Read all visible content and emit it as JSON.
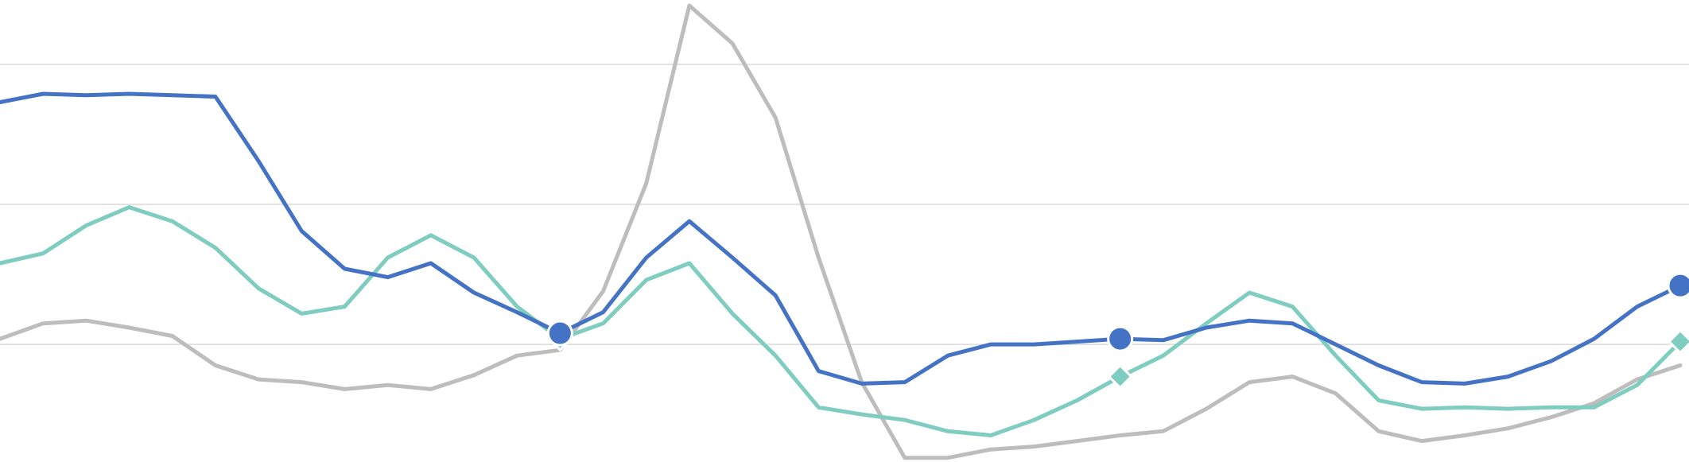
{
  "chart_data": {
    "type": "line",
    "categories": [
      null,
      null,
      null,
      null,
      null,
      null,
      null,
      null,
      null,
      null,
      null,
      null,
      null,
      null,
      null,
      null,
      null,
      null,
      null,
      null,
      null,
      null,
      null,
      null,
      null,
      null,
      null,
      null,
      null,
      null,
      null,
      null,
      null,
      null,
      null,
      null,
      null,
      null,
      null,
      null
    ],
    "ylim": [
      1.6,
      34.6
    ],
    "yticks": [
      10,
      20,
      30
    ],
    "grid": true,
    "series": [
      {
        "color": "#bdbdbd",
        "values": [
          10.4,
          11.5,
          11.7,
          11.2,
          10.6,
          8.5,
          7.5,
          7.3,
          6.8,
          7.1,
          6.8,
          7.8,
          9.2,
          9.6,
          13.8,
          21.5,
          34.2,
          31.5,
          26.2,
          16.2,
          7.3,
          1.9,
          1.9,
          2.5,
          2.7,
          3.1,
          3.5,
          3.8,
          5.4,
          7.3,
          7.7,
          6.5,
          3.8,
          3.1,
          3.5,
          4.0,
          4.8,
          5.8,
          7.5,
          8.5
        ]
      },
      {
        "color": "#7ecdc0",
        "marker": "diamond",
        "markers": [
          13,
          26,
          39
        ],
        "values": [
          15.8,
          16.5,
          18.5,
          19.8,
          18.8,
          16.9,
          14.0,
          12.2,
          12.7,
          16.2,
          17.8,
          16.2,
          12.7,
          10.4,
          11.5,
          14.6,
          15.8,
          12.2,
          9.2,
          5.5,
          5.0,
          4.6,
          3.8,
          3.5,
          4.6,
          6.0,
          7.7,
          9.2,
          11.5,
          13.7,
          12.7,
          9.2,
          6.0,
          5.4,
          5.5,
          5.4,
          5.5,
          5.5,
          7.1,
          10.2
        ]
      },
      {
        "color": "#4472c4",
        "marker": "circle",
        "markers": [
          13,
          26,
          39
        ],
        "values": [
          27.3,
          27.9,
          27.8,
          27.9,
          27.8,
          27.7,
          23.1,
          18.1,
          15.4,
          14.8,
          15.8,
          13.7,
          12.3,
          10.8,
          12.3,
          16.2,
          18.8,
          16.2,
          13.5,
          8.1,
          7.2,
          7.3,
          9.2,
          10.0,
          10.0,
          10.2,
          10.4,
          10.3,
          11.2,
          11.7,
          11.5,
          10.0,
          8.5,
          7.3,
          7.2,
          7.7,
          8.8,
          10.4,
          12.7,
          14.2
        ]
      }
    ]
  }
}
